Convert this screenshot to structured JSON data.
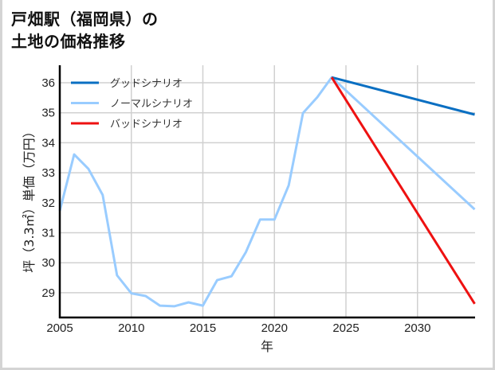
{
  "title": {
    "line1": "戸畑駅（福岡県）の",
    "line2": "土地の価格推移"
  },
  "chart_data": {
    "type": "line",
    "title": "戸畑駅（福岡県）の土地の価格推移",
    "xlabel": "年",
    "ylabel": "坪（3.3㎡）単価（万円）",
    "xlim": [
      2005,
      2034
    ],
    "ylim": [
      28.2,
      36.6
    ],
    "xticks": [
      2005,
      2010,
      2015,
      2020,
      2025,
      2030
    ],
    "yticks": [
      29,
      30,
      31,
      32,
      33,
      34,
      35,
      36
    ],
    "grid": true,
    "legend_position": "upper left",
    "series": [
      {
        "name": "グッドシナリオ",
        "color": "#0a6fc2",
        "x": [
          2024,
          2034
        ],
        "y": [
          36.18,
          34.94
        ]
      },
      {
        "name": "ノーマルシナリオ",
        "color": "#99ccff",
        "x": [
          2005,
          2006,
          2007,
          2008,
          2009,
          2010,
          2011,
          2012,
          2013,
          2014,
          2015,
          2016,
          2017,
          2018,
          2019,
          2020,
          2021,
          2022,
          2023,
          2024,
          2034
        ],
        "y": [
          31.73,
          33.61,
          33.13,
          32.26,
          29.58,
          28.98,
          28.89,
          28.57,
          28.55,
          28.68,
          28.57,
          29.42,
          29.55,
          30.35,
          31.44,
          31.44,
          32.58,
          34.99,
          35.52,
          36.18,
          31.78
        ]
      },
      {
        "name": "バッドシナリオ",
        "color": "#ee1111",
        "x": [
          2024,
          2034
        ],
        "y": [
          36.18,
          28.63
        ]
      }
    ]
  }
}
